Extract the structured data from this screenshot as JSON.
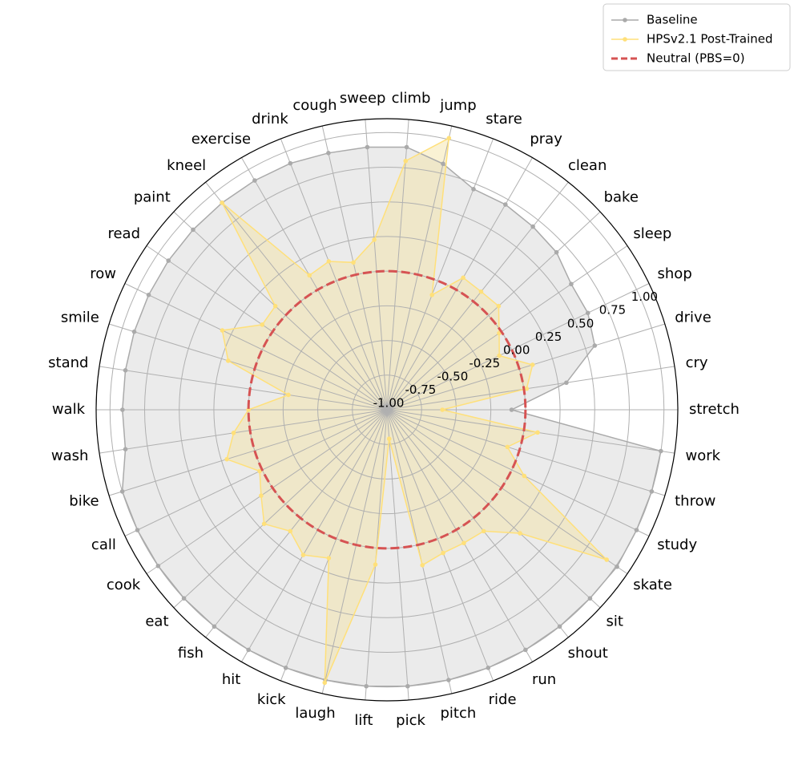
{
  "chart_data": {
    "type": "radar",
    "theta_zero": "E",
    "theta_direction": "clockwise",
    "categories": [
      "stretch",
      "work",
      "throw",
      "study",
      "skate",
      "sit",
      "shout",
      "run",
      "ride",
      "pitch",
      "pick",
      "lift",
      "laugh",
      "kick",
      "hit",
      "fish",
      "eat",
      "cook",
      "call",
      "bike",
      "wash",
      "walk",
      "stand",
      "smile",
      "row",
      "read",
      "paint",
      "kneel",
      "exercise",
      "drink",
      "cough",
      "sweep",
      "climb",
      "jump",
      "stare",
      "pray",
      "clean",
      "bake",
      "sleep",
      "shop",
      "drive",
      "cry"
    ],
    "series": [
      {
        "name": "Baseline",
        "color": "#aaaaaa",
        "fill": "#cccccc",
        "values": [
          -0.1,
          1.0,
          1.0,
          1.0,
          1.01,
          1.0,
          1.0,
          1.0,
          1.0,
          1.0,
          1.0,
          1.0,
          1.0,
          1.0,
          1.0,
          1.0,
          1.0,
          1.0,
          1.0,
          1.0,
          0.91,
          0.91,
          0.91,
          0.91,
          0.91,
          0.91,
          0.91,
          0.91,
          0.91,
          0.91,
          0.9,
          0.9,
          0.9,
          0.82,
          0.71,
          0.71,
          0.69,
          0.67,
          0.61,
          0.61,
          0.57,
          0.31
        ]
      },
      {
        "name": "HPSv2.1 Post-Trained",
        "color": "#ffe07a",
        "fill": "#f5e2a0",
        "values": [
          -0.6,
          0.1,
          -0.09,
          0.1,
          0.92,
          0.31,
          0.12,
          0.11,
          0.11,
          0.15,
          -0.79,
          0.12,
          1.02,
          0.15,
          0.21,
          0.12,
          0.21,
          0.1,
          0.02,
          0.21,
          0.12,
          0.0,
          -0.28,
          0.2,
          0.32,
          0.09,
          0.1,
          0.91,
          0.12,
          0.15,
          0.09,
          0.23,
          0.8,
          1.01,
          -0.11,
          0.1,
          0.09,
          0.1,
          -0.02,
          -0.1,
          0.1,
          0.02
        ]
      }
    ],
    "reference_line": {
      "name": "Neutral (PBS=0)",
      "value": 0,
      "color": "#d65353"
    },
    "ylim": [
      -1,
      1.1
    ],
    "yticks": [
      {
        "value": -1,
        "label": "-1.00"
      },
      {
        "value": -0.75,
        "label": "-0.75"
      },
      {
        "value": -0.5,
        "label": "-0.50"
      },
      {
        "value": -0.25,
        "label": "-0.25"
      },
      {
        "value": 0,
        "label": "0.00"
      },
      {
        "value": 0.25,
        "label": "0.25"
      },
      {
        "value": 0.5,
        "label": "0.50"
      },
      {
        "value": 0.75,
        "label": "0.75"
      },
      {
        "value": 1,
        "label": "1.00"
      }
    ],
    "grid": true,
    "legend": "upper right"
  }
}
